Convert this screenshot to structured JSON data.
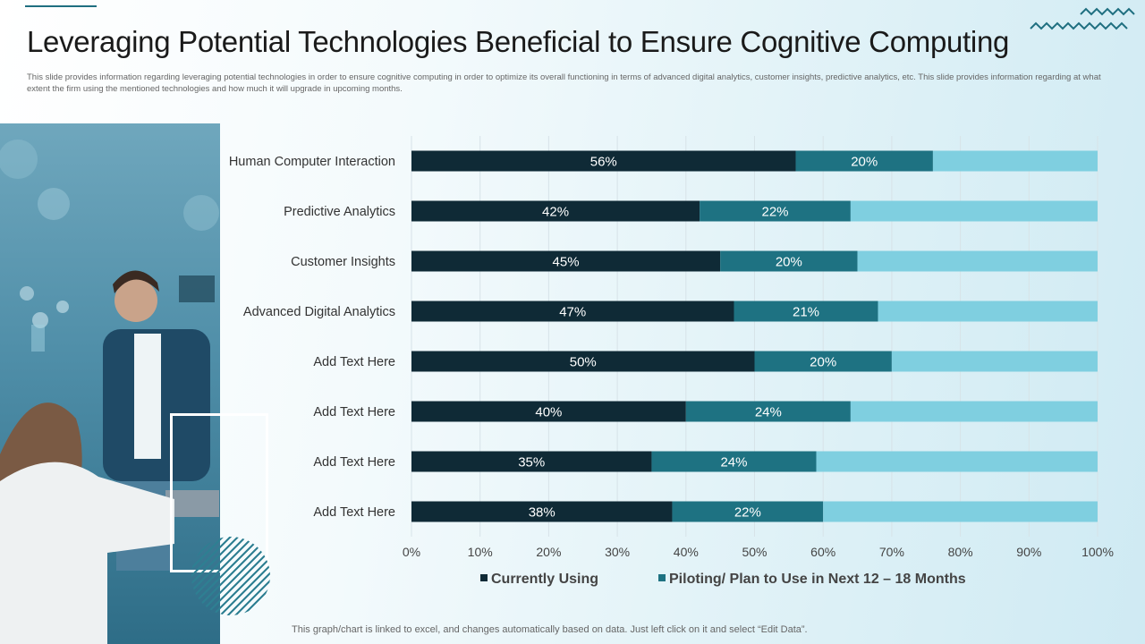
{
  "header": {
    "title": "Leveraging Potential Technologies Beneficial to Ensure Cognitive Computing",
    "subtitle": "This slide provides information regarding leveraging potential technologies in order to ensure cognitive computing in order to optimize its overall functioning in terms of advanced digital analytics, customer insights, predictive analytics, etc. This slide provides information regarding at what extent the firm using the mentioned technologies and how much it will upgrade in upcoming months."
  },
  "footer": {
    "note": "This graph/chart is linked to excel,  and changes automatically based on data. Just left click on it and select “Edit Data”."
  },
  "colors": {
    "current": "#0f2a36",
    "piloting": "#1e7282",
    "remaining": "#7fcfe0",
    "grid": "#d7e3e8",
    "label_text": "#333333"
  },
  "chart_data": {
    "type": "bar",
    "orientation": "horizontal",
    "stacked": true,
    "categories": [
      "Human Computer Interaction",
      "Predictive Analytics",
      "Customer Insights",
      "Advanced Digital Analytics",
      "Add Text Here",
      "Add Text Here",
      "Add Text Here",
      "Add Text Here"
    ],
    "series": [
      {
        "name": "Currently Using",
        "values": [
          56,
          42,
          45,
          47,
          50,
          40,
          35,
          38
        ]
      },
      {
        "name": "Piloting/ Plan to Use in Next 12 – 18 Months",
        "values": [
          20,
          22,
          20,
          21,
          20,
          24,
          24,
          22
        ]
      }
    ],
    "total": 100,
    "xlim": [
      0,
      100
    ],
    "xticks": [
      "0%",
      "10%",
      "20%",
      "30%",
      "40%",
      "50%",
      "60%",
      "70%",
      "80%",
      "90%",
      "100%"
    ],
    "grid": true,
    "legend_position": "bottom"
  }
}
